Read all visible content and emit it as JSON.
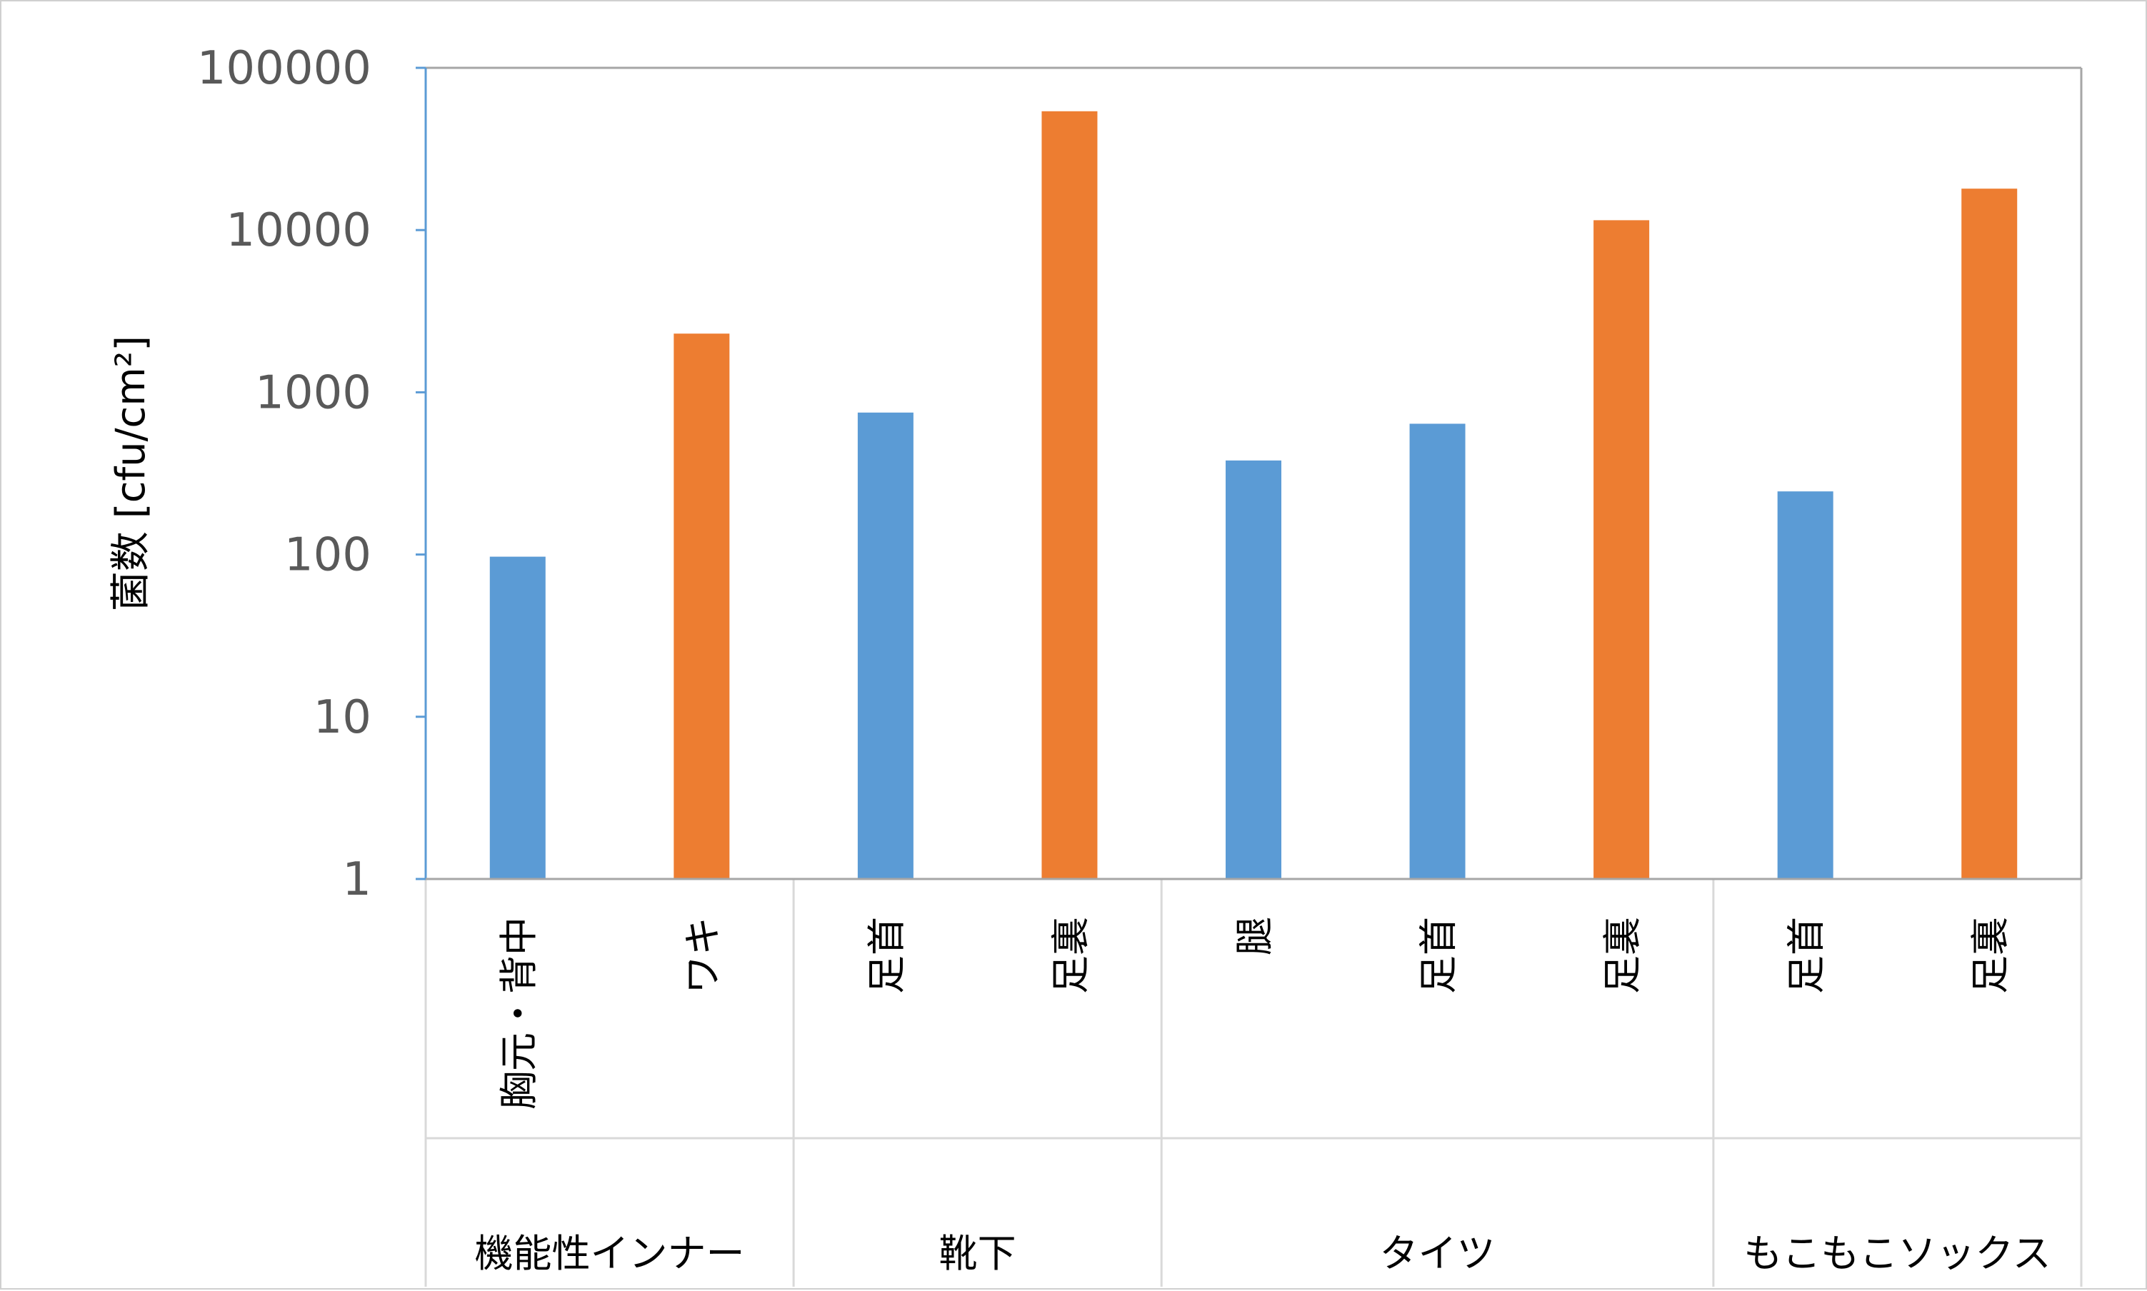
{
  "chart_data": {
    "type": "bar",
    "yscale": "log",
    "ylim": [
      1,
      100000
    ],
    "yticks": [
      1,
      10,
      100,
      1000,
      10000,
      100000
    ],
    "ytick_labels": [
      "1",
      "10",
      "100",
      "1000",
      "10000",
      "100000"
    ],
    "ylabel": "菌数 [cfu/cm²]",
    "xlabel": "",
    "title": "",
    "grid": false,
    "legend": "none",
    "colors": {
      "blue": "#5b9bd5",
      "orange": "#ed7d31",
      "axis": "#5b9bd5",
      "frame": "#a6a6a6",
      "separator": "#d9d9d9"
    },
    "categories": [
      "胸元・背中",
      "ワキ",
      "足首",
      "足裏",
      "腿",
      "足首",
      "足裏",
      "足首",
      "足裏"
    ],
    "values": [
      97,
      2300,
      750,
      54000,
      380,
      640,
      11500,
      245,
      18000
    ],
    "bar_colors": [
      "blue",
      "orange",
      "blue",
      "orange",
      "blue",
      "blue",
      "orange",
      "blue",
      "orange"
    ],
    "groups": [
      {
        "label": "機能性インナー",
        "count": 2
      },
      {
        "label": "靴下",
        "count": 2
      },
      {
        "label": "タイツ",
        "count": 3
      },
      {
        "label": "もこもこソックス",
        "count": 2
      }
    ]
  }
}
